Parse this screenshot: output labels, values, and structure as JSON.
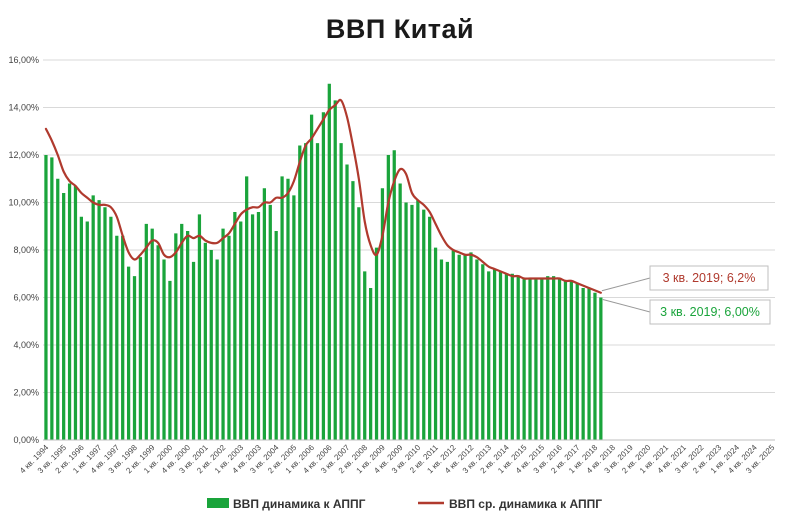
{
  "chart_data": {
    "type": "bar",
    "title": "ВВП Китай",
    "xlabel": "",
    "ylabel": "",
    "ylim": [
      0,
      16
    ],
    "y_ticks": [
      "0,00%",
      "2,00%",
      "4,00%",
      "6,00%",
      "8,00%",
      "10,00%",
      "12,00%",
      "14,00%",
      "16,00%"
    ],
    "grid": true,
    "legend_position": "bottom",
    "x_tick_labels": [
      "4 кв. 1994",
      "3 кв. 1995",
      "2 кв. 1996",
      "1 кв. 1997",
      "4 кв. 1997",
      "3 кв. 1998",
      "2 кв. 1999",
      "1 кв. 2000",
      "4 кв. 2000",
      "3 кв. 2001",
      "2 кв. 2002",
      "1 кв. 2003",
      "4 кв. 2003",
      "3 кв. 2004",
      "2 кв. 2005",
      "1 кв. 2006",
      "4 кв. 2006",
      "3 кв. 2007",
      "2 кв. 2008",
      "1 кв. 2009",
      "4 кв. 2009",
      "3 кв. 2010",
      "2 кв. 2011",
      "1 кв. 2012",
      "4 кв. 2012",
      "3 кв. 2013",
      "2 кв. 2014",
      "1 кв. 2015",
      "4 кв. 2015",
      "3 кв. 2016",
      "2 кв. 2017",
      "1 кв. 2018",
      "4 кв. 2018",
      "3 кв. 2019",
      "2 кв. 2020",
      "1 кв. 2021",
      "4 кв. 2021",
      "3 кв. 2022",
      "2 кв. 2023",
      "1 кв. 2024",
      "4 кв. 2024",
      "3 кв. 2025"
    ],
    "series": [
      {
        "name": "ВВП динамика к АППГ",
        "kind": "bar",
        "color": "#1aa43b",
        "values": [
          12.0,
          11.9,
          11.0,
          10.4,
          10.8,
          10.7,
          9.4,
          9.2,
          10.3,
          10.1,
          9.8,
          9.4,
          8.6,
          8.6,
          7.3,
          6.9,
          7.7,
          9.1,
          8.9,
          8.2,
          7.6,
          6.7,
          8.7,
          9.1,
          8.8,
          7.5,
          9.5,
          8.3,
          8.0,
          7.6,
          8.9,
          8.6,
          9.6,
          9.2,
          11.1,
          9.5,
          9.6,
          10.6,
          9.9,
          8.8,
          11.1,
          11.0,
          10.3,
          12.4,
          12.5,
          13.7,
          12.5,
          13.8,
          15.0,
          14.3,
          12.5,
          11.6,
          10.9,
          9.8,
          7.1,
          6.4,
          8.1,
          10.6,
          12.0,
          12.2,
          10.8,
          10.0,
          9.9,
          10.1,
          9.7,
          9.4,
          8.1,
          7.6,
          7.5,
          8.0,
          7.8,
          7.8,
          7.9,
          7.6,
          7.4,
          7.1,
          7.2,
          7.1,
          7.0,
          7.0,
          6.9,
          6.8,
          6.8,
          6.8,
          6.8,
          6.9,
          6.9,
          6.8,
          6.7,
          6.7,
          6.6,
          6.4,
          6.4,
          6.2,
          6.0
        ]
      },
      {
        "name": "ВВП ср. динамика к АППГ",
        "kind": "line",
        "color": "#b03a2e",
        "values": [
          13.1,
          12.6,
          12.0,
          11.3,
          10.9,
          10.7,
          10.4,
          10.2,
          10.0,
          9.9,
          9.9,
          9.8,
          9.4,
          8.6,
          7.9,
          7.6,
          7.8,
          8.1,
          8.4,
          8.3,
          7.8,
          7.7,
          7.9,
          8.3,
          8.6,
          8.5,
          8.6,
          8.4,
          8.3,
          8.3,
          8.5,
          8.7,
          9.1,
          9.5,
          9.7,
          9.8,
          9.8,
          10.0,
          10.0,
          10.2,
          10.2,
          10.4,
          10.9,
          11.7,
          12.4,
          12.7,
          13.1,
          13.5,
          13.9,
          14.1,
          14.3,
          13.6,
          12.4,
          11.0,
          9.2,
          8.2,
          7.8,
          8.6,
          10.0,
          10.9,
          11.4,
          11.2,
          10.4,
          10.1,
          9.9,
          9.6,
          9.1,
          8.6,
          8.2,
          8.0,
          7.9,
          7.8,
          7.8,
          7.7,
          7.5,
          7.3,
          7.2,
          7.1,
          7.0,
          6.9,
          6.9,
          6.8,
          6.8,
          6.8,
          6.8,
          6.8,
          6.8,
          6.8,
          6.7,
          6.7,
          6.6,
          6.5,
          6.4,
          6.3,
          6.2
        ]
      }
    ],
    "annotations": [
      {
        "text": "3 кв. 2019; 6,2%",
        "series": 1,
        "color": "#b03a2e"
      },
      {
        "text": "3 кв. 2019; 6,00%",
        "series": 0,
        "color": "#1aa43b"
      }
    ]
  }
}
